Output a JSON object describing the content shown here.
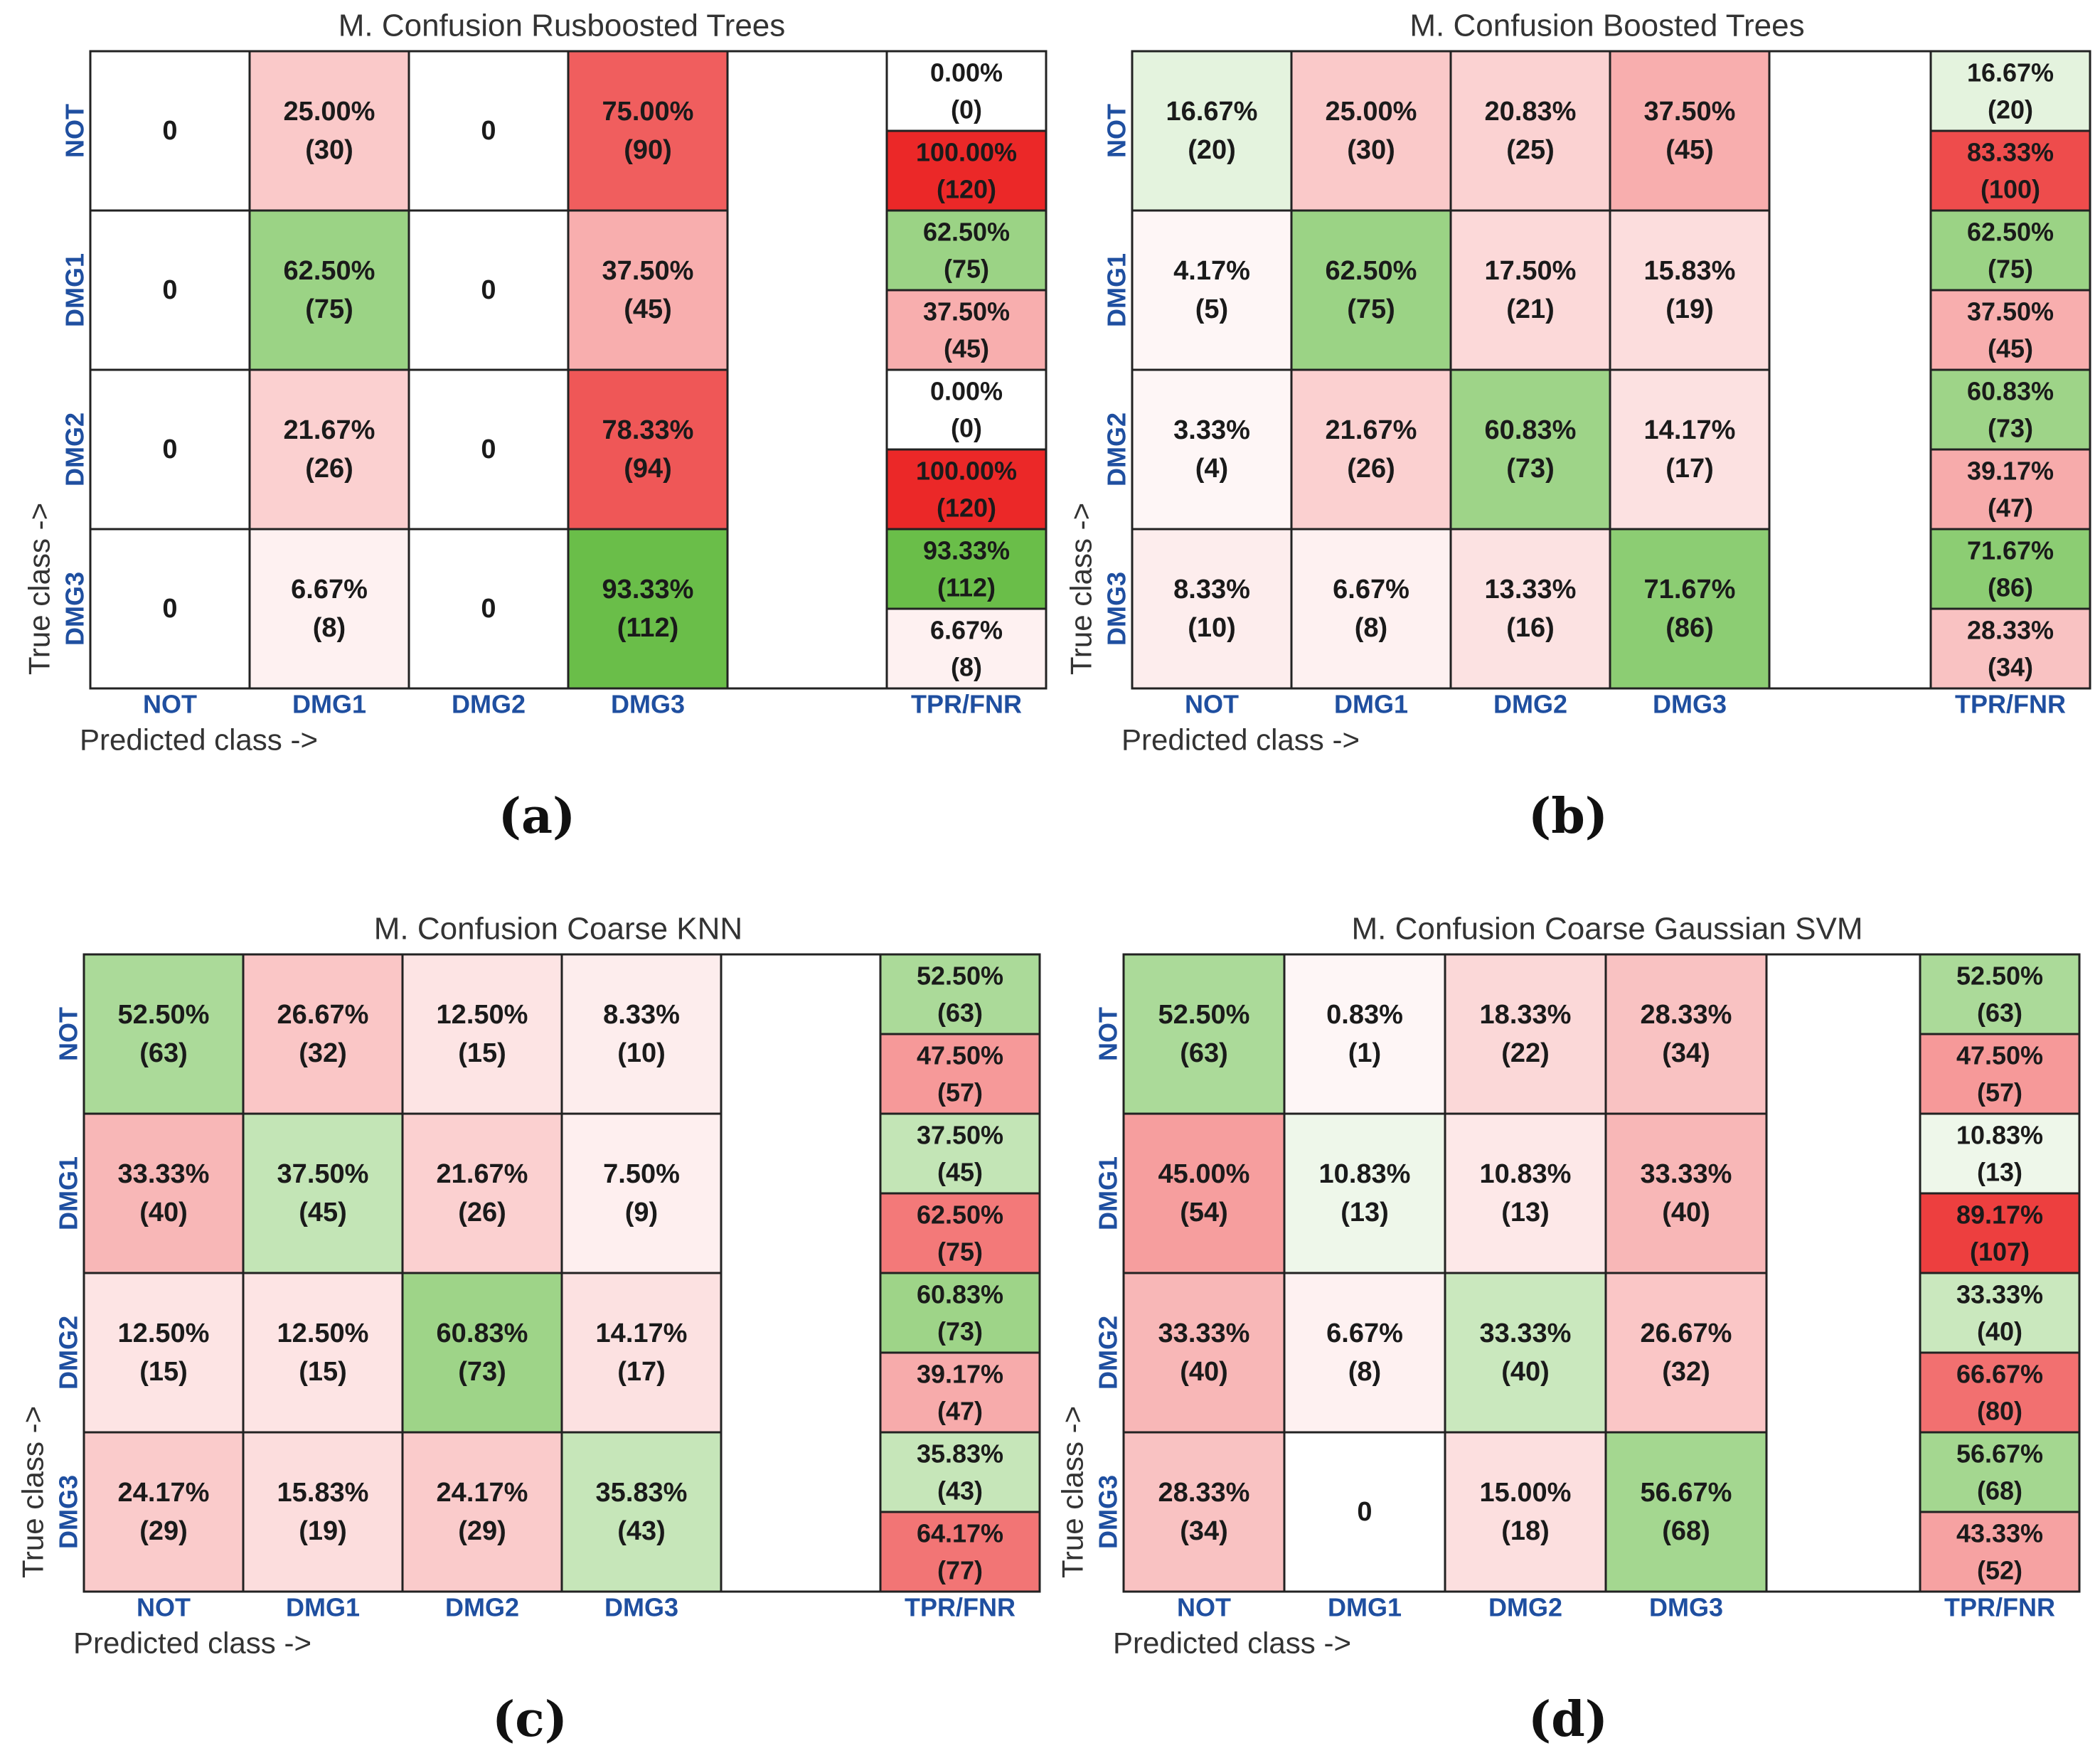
{
  "chart_data": [
    {
      "type": "heatmap",
      "title": "M. Confusion Rusboosted Trees",
      "xlabel": "Predicted class ->",
      "ylabel": "True class ->",
      "caption": "(a)",
      "row_labels": [
        "NOT",
        "DMG1",
        "DMG2",
        "DMG3"
      ],
      "col_labels": [
        "NOT",
        "DMG1",
        "DMG2",
        "DMG3"
      ],
      "summary_label": "TPR/FNR",
      "cells": [
        [
          {
            "pct": "",
            "count": "0"
          },
          {
            "pct": "25.00%",
            "count": "(30)"
          },
          {
            "pct": "",
            "count": "0"
          },
          {
            "pct": "75.00%",
            "count": "(90)"
          }
        ],
        [
          {
            "pct": "",
            "count": "0"
          },
          {
            "pct": "62.50%",
            "count": "(75)"
          },
          {
            "pct": "",
            "count": "0"
          },
          {
            "pct": "37.50%",
            "count": "(45)"
          }
        ],
        [
          {
            "pct": "",
            "count": "0"
          },
          {
            "pct": "21.67%",
            "count": "(26)"
          },
          {
            "pct": "",
            "count": "0"
          },
          {
            "pct": "78.33%",
            "count": "(94)"
          }
        ],
        [
          {
            "pct": "",
            "count": "0"
          },
          {
            "pct": "6.67%",
            "count": "(8)"
          },
          {
            "pct": "",
            "count": "0"
          },
          {
            "pct": "93.33%",
            "count": "(112)"
          }
        ]
      ],
      "cell_values": [
        [
          0,
          25.0,
          0,
          75.0
        ],
        [
          0,
          62.5,
          0,
          37.5
        ],
        [
          0,
          21.67,
          0,
          78.33
        ],
        [
          0,
          6.67,
          0,
          93.33
        ]
      ],
      "tpr": [
        {
          "pct": "0.00%",
          "count": "(0)"
        },
        {
          "pct": "62.50%",
          "count": "(75)"
        },
        {
          "pct": "0.00%",
          "count": "(0)"
        },
        {
          "pct": "93.33%",
          "count": "(112)"
        }
      ],
      "fnr": [
        {
          "pct": "100.00%",
          "count": "(120)"
        },
        {
          "pct": "37.50%",
          "count": "(45)"
        },
        {
          "pct": "100.00%",
          "count": "(120)"
        },
        {
          "pct": "6.67%",
          "count": "(8)"
        }
      ],
      "tpr_values": [
        0.0,
        62.5,
        0.0,
        93.33
      ],
      "fnr_values": [
        100.0,
        37.5,
        100.0,
        6.67
      ]
    },
    {
      "type": "heatmap",
      "title": "M. Confusion Boosted Trees",
      "xlabel": "Predicted class ->",
      "ylabel": "True class ->",
      "caption": "(b)",
      "row_labels": [
        "NOT",
        "DMG1",
        "DMG2",
        "DMG3"
      ],
      "col_labels": [
        "NOT",
        "DMG1",
        "DMG2",
        "DMG3"
      ],
      "summary_label": "TPR/FNR",
      "cells": [
        [
          {
            "pct": "16.67%",
            "count": "(20)"
          },
          {
            "pct": "25.00%",
            "count": "(30)"
          },
          {
            "pct": "20.83%",
            "count": "(25)"
          },
          {
            "pct": "37.50%",
            "count": "(45)"
          }
        ],
        [
          {
            "pct": "4.17%",
            "count": "(5)"
          },
          {
            "pct": "62.50%",
            "count": "(75)"
          },
          {
            "pct": "17.50%",
            "count": "(21)"
          },
          {
            "pct": "15.83%",
            "count": "(19)"
          }
        ],
        [
          {
            "pct": "3.33%",
            "count": "(4)"
          },
          {
            "pct": "21.67%",
            "count": "(26)"
          },
          {
            "pct": "60.83%",
            "count": "(73)"
          },
          {
            "pct": "14.17%",
            "count": "(17)"
          }
        ],
        [
          {
            "pct": "8.33%",
            "count": "(10)"
          },
          {
            "pct": "6.67%",
            "count": "(8)"
          },
          {
            "pct": "13.33%",
            "count": "(16)"
          },
          {
            "pct": "71.67%",
            "count": "(86)"
          }
        ]
      ],
      "cell_values": [
        [
          16.67,
          25.0,
          20.83,
          37.5
        ],
        [
          4.17,
          62.5,
          17.5,
          15.83
        ],
        [
          3.33,
          21.67,
          60.83,
          14.17
        ],
        [
          8.33,
          6.67,
          13.33,
          71.67
        ]
      ],
      "tpr": [
        {
          "pct": "16.67%",
          "count": "(20)"
        },
        {
          "pct": "62.50%",
          "count": "(75)"
        },
        {
          "pct": "60.83%",
          "count": "(73)"
        },
        {
          "pct": "71.67%",
          "count": "(86)"
        }
      ],
      "fnr": [
        {
          "pct": "83.33%",
          "count": "(100)"
        },
        {
          "pct": "37.50%",
          "count": "(45)"
        },
        {
          "pct": "39.17%",
          "count": "(47)"
        },
        {
          "pct": "28.33%",
          "count": "(34)"
        }
      ],
      "tpr_values": [
        16.67,
        62.5,
        60.83,
        71.67
      ],
      "fnr_values": [
        83.33,
        37.5,
        39.17,
        28.33
      ]
    },
    {
      "type": "heatmap",
      "title": "M. Confusion Coarse KNN",
      "xlabel": "Predicted class ->",
      "ylabel": "True class ->",
      "caption": "(c)",
      "row_labels": [
        "NOT",
        "DMG1",
        "DMG2",
        "DMG3"
      ],
      "col_labels": [
        "NOT",
        "DMG1",
        "DMG2",
        "DMG3"
      ],
      "summary_label": "TPR/FNR",
      "cells": [
        [
          {
            "pct": "52.50%",
            "count": "(63)"
          },
          {
            "pct": "26.67%",
            "count": "(32)"
          },
          {
            "pct": "12.50%",
            "count": "(15)"
          },
          {
            "pct": "8.33%",
            "count": "(10)"
          }
        ],
        [
          {
            "pct": "33.33%",
            "count": "(40)"
          },
          {
            "pct": "37.50%",
            "count": "(45)"
          },
          {
            "pct": "21.67%",
            "count": "(26)"
          },
          {
            "pct": "7.50%",
            "count": "(9)"
          }
        ],
        [
          {
            "pct": "12.50%",
            "count": "(15)"
          },
          {
            "pct": "12.50%",
            "count": "(15)"
          },
          {
            "pct": "60.83%",
            "count": "(73)"
          },
          {
            "pct": "14.17%",
            "count": "(17)"
          }
        ],
        [
          {
            "pct": "24.17%",
            "count": "(29)"
          },
          {
            "pct": "15.83%",
            "count": "(19)"
          },
          {
            "pct": "24.17%",
            "count": "(29)"
          },
          {
            "pct": "35.83%",
            "count": "(43)"
          }
        ]
      ],
      "cell_values": [
        [
          52.5,
          26.67,
          12.5,
          8.33
        ],
        [
          33.33,
          37.5,
          21.67,
          7.5
        ],
        [
          12.5,
          12.5,
          60.83,
          14.17
        ],
        [
          24.17,
          15.83,
          24.17,
          35.83
        ]
      ],
      "tpr": [
        {
          "pct": "52.50%",
          "count": "(63)"
        },
        {
          "pct": "37.50%",
          "count": "(45)"
        },
        {
          "pct": "60.83%",
          "count": "(73)"
        },
        {
          "pct": "35.83%",
          "count": "(43)"
        }
      ],
      "fnr": [
        {
          "pct": "47.50%",
          "count": "(57)"
        },
        {
          "pct": "62.50%",
          "count": "(75)"
        },
        {
          "pct": "39.17%",
          "count": "(47)"
        },
        {
          "pct": "64.17%",
          "count": "(77)"
        }
      ],
      "tpr_values": [
        52.5,
        37.5,
        60.83,
        35.83
      ],
      "fnr_values": [
        47.5,
        62.5,
        39.17,
        64.17
      ]
    },
    {
      "type": "heatmap",
      "title": "M. Confusion Coarse Gaussian SVM",
      "xlabel": "Predicted class ->",
      "ylabel": "True class ->",
      "caption": "(d)",
      "row_labels": [
        "NOT",
        "DMG1",
        "DMG2",
        "DMG3"
      ],
      "col_labels": [
        "NOT",
        "DMG1",
        "DMG2",
        "DMG3"
      ],
      "summary_label": "TPR/FNR",
      "cells": [
        [
          {
            "pct": "52.50%",
            "count": "(63)"
          },
          {
            "pct": "0.83%",
            "count": "(1)"
          },
          {
            "pct": "18.33%",
            "count": "(22)"
          },
          {
            "pct": "28.33%",
            "count": "(34)"
          }
        ],
        [
          {
            "pct": "45.00%",
            "count": "(54)"
          },
          {
            "pct": "10.83%",
            "count": "(13)"
          },
          {
            "pct": "10.83%",
            "count": "(13)"
          },
          {
            "pct": "33.33%",
            "count": "(40)"
          }
        ],
        [
          {
            "pct": "33.33%",
            "count": "(40)"
          },
          {
            "pct": "6.67%",
            "count": "(8)"
          },
          {
            "pct": "33.33%",
            "count": "(40)"
          },
          {
            "pct": "26.67%",
            "count": "(32)"
          }
        ],
        [
          {
            "pct": "28.33%",
            "count": "(34)"
          },
          {
            "pct": "",
            "count": "0"
          },
          {
            "pct": "15.00%",
            "count": "(18)"
          },
          {
            "pct": "56.67%",
            "count": "(68)"
          }
        ]
      ],
      "cell_values": [
        [
          52.5,
          0.83,
          18.33,
          28.33
        ],
        [
          45.0,
          10.83,
          10.83,
          33.33
        ],
        [
          33.33,
          6.67,
          33.33,
          26.67
        ],
        [
          28.33,
          0,
          15.0,
          56.67
        ]
      ],
      "tpr": [
        {
          "pct": "52.50%",
          "count": "(63)"
        },
        {
          "pct": "10.83%",
          "count": "(13)"
        },
        {
          "pct": "33.33%",
          "count": "(40)"
        },
        {
          "pct": "56.67%",
          "count": "(68)"
        }
      ],
      "fnr": [
        {
          "pct": "47.50%",
          "count": "(57)"
        },
        {
          "pct": "89.17%",
          "count": "(107)"
        },
        {
          "pct": "66.67%",
          "count": "(80)"
        },
        {
          "pct": "43.33%",
          "count": "(52)"
        }
      ],
      "tpr_values": [
        52.5,
        10.83,
        33.33,
        56.67
      ],
      "fnr_values": [
        47.5,
        89.17,
        66.67,
        43.33
      ]
    }
  ],
  "colors": {
    "label_blue": "#1f4fa0",
    "text": "#1a1a1a",
    "border": "#222222",
    "green_strong": [
      95,
      185,
      60
    ],
    "red_strong": [
      235,
      40,
      40
    ],
    "white": [
      255,
      255,
      255
    ]
  }
}
